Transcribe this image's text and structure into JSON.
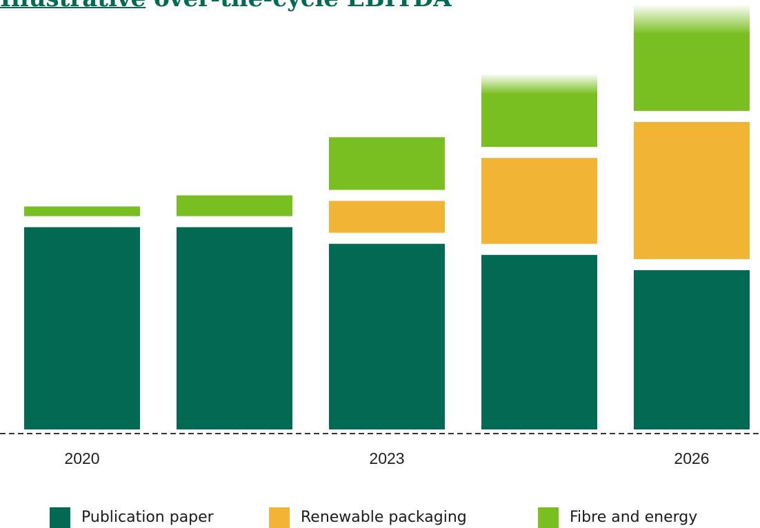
{
  "title": {
    "lead": "Illustrative",
    "rest": " over-the-cycle EBITDA"
  },
  "colors": {
    "publication_paper": "#026952",
    "renewable_packaging": "#f2b434",
    "fibre_and_energy": "#7abf21"
  },
  "chart_data": {
    "type": "bar",
    "stacked": true,
    "categories": [
      "2020",
      "",
      "2023",
      "",
      "2026"
    ],
    "x_tick_labels": [
      "2020",
      "",
      "2023",
      "",
      "2026"
    ],
    "series": [
      {
        "name": "Publication paper",
        "color": "#026952",
        "values": [
          292,
          292,
          268,
          252,
          230
        ]
      },
      {
        "name": "Renewable packaging",
        "color": "#f2b434",
        "values": [
          0,
          0,
          46,
          124,
          198
        ]
      },
      {
        "name": "Fibre and energy",
        "color": "#7abf21",
        "values": [
          14,
          30,
          76,
          106,
          154
        ]
      }
    ],
    "faded_tops": [
      false,
      false,
      false,
      true,
      true
    ],
    "ylim": [
      0,
      620
    ],
    "grid": false,
    "baseline": "dashed",
    "legend": "bottom"
  },
  "legend": {
    "items": [
      {
        "label": "Publication paper",
        "color": "#026952"
      },
      {
        "label": "Renewable packaging",
        "color": "#f2b434"
      },
      {
        "label": "Fibre and energy",
        "color": "#7abf21"
      }
    ]
  }
}
